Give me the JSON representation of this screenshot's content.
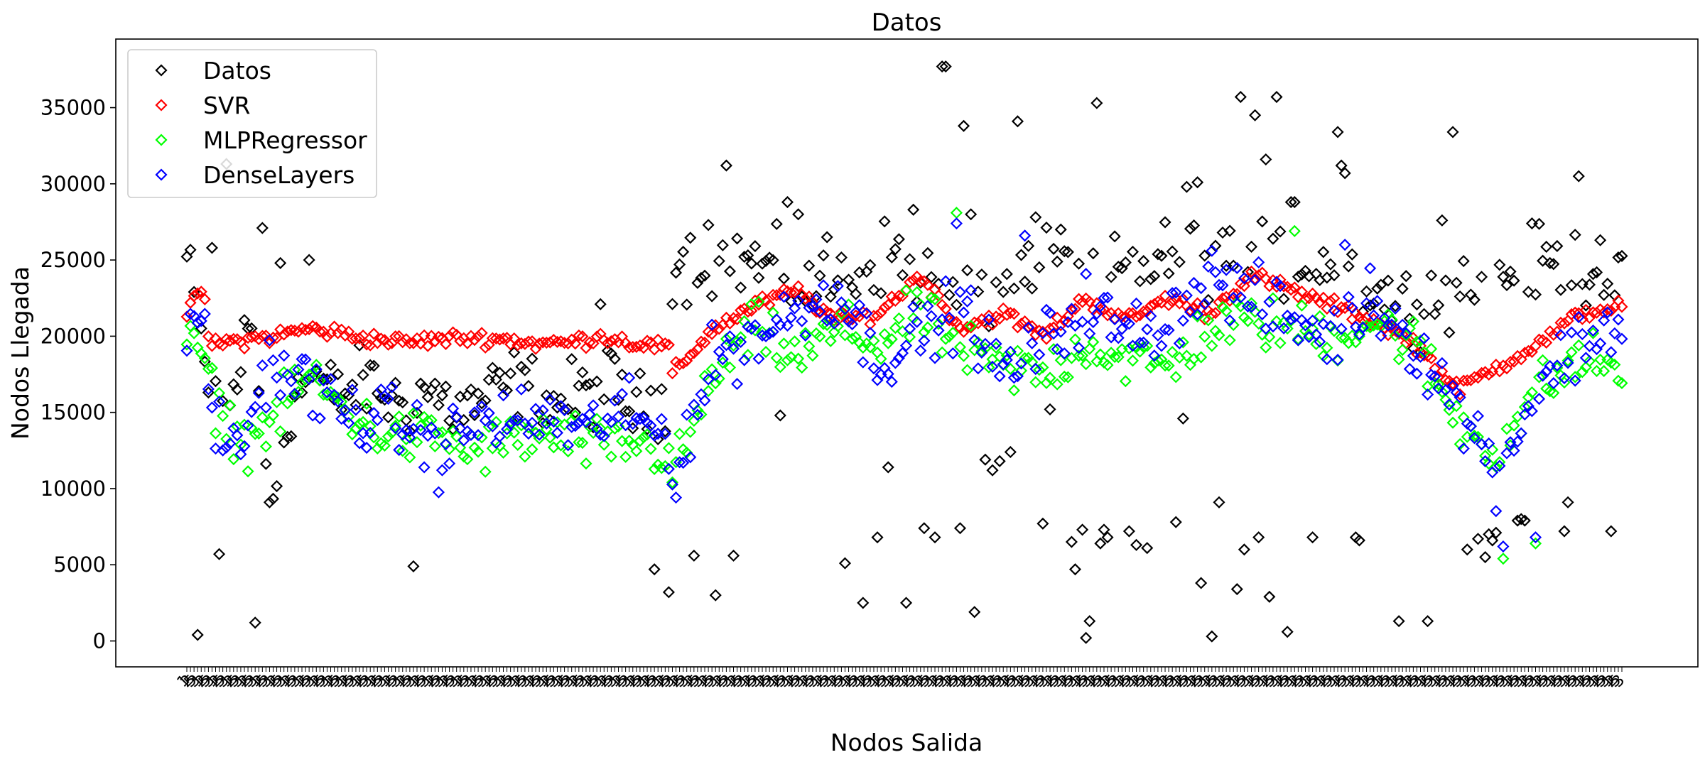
{
  "chart_data": {
    "type": "scatter",
    "title": "Datos",
    "xlabel": "Nodos Salida",
    "ylabel": "Nodos Llegada",
    "ylim": [
      -1700,
      39500
    ],
    "yticks": [
      0,
      5000,
      10000,
      15000,
      20000,
      25000,
      30000,
      35000
    ],
    "ytick_labels": [
      "0",
      "5000",
      "10000",
      "15000",
      "20000",
      "25000",
      "30000",
      "35000"
    ],
    "n_points": 400,
    "marker": "diamond-open",
    "grid": false,
    "legend_position": "top-left",
    "x_ticklabel_repeat": [
      "1",
      "2",
      "5",
      "3"
    ],
    "series": [
      {
        "name": "Datos",
        "color": "#000000",
        "segments": [
          {
            "from": 0,
            "to": 42,
            "anchors": [
              25000,
              17000,
              15000,
              21000,
              9000,
              16000,
              17500,
              16000
            ]
          },
          {
            "from": 42,
            "to": 135,
            "anchors": [
              16000,
              17000,
              15500,
              16500,
              15000,
              16000,
              17000,
              15500,
              16000,
              17000,
              15000,
              16000
            ]
          },
          {
            "from": 135,
            "to": 400,
            "anchors": [
              24800,
              25000,
              23000,
              25500,
              22000,
              25000,
              24000,
              25500,
              24800,
              25000,
              22000,
              23500,
              25000,
              24000
            ]
          }
        ],
        "spread": 3600,
        "outliers": [
          {
            "i": 3,
            "y": 400
          },
          {
            "i": 7,
            "y": 25800
          },
          {
            "i": 9,
            "y": 5700
          },
          {
            "i": 11,
            "y": 31300
          },
          {
            "i": 19,
            "y": 1200
          },
          {
            "i": 21,
            "y": 27100
          },
          {
            "i": 23,
            "y": 9100
          },
          {
            "i": 26,
            "y": 24800
          },
          {
            "i": 34,
            "y": 25000
          },
          {
            "i": 63,
            "y": 4900
          },
          {
            "i": 115,
            "y": 22100
          },
          {
            "i": 130,
            "y": 4700
          },
          {
            "i": 134,
            "y": 3200
          },
          {
            "i": 141,
            "y": 5600
          },
          {
            "i": 145,
            "y": 27300
          },
          {
            "i": 147,
            "y": 3000
          },
          {
            "i": 150,
            "y": 31200
          },
          {
            "i": 152,
            "y": 5600
          },
          {
            "i": 165,
            "y": 14800
          },
          {
            "i": 167,
            "y": 28800
          },
          {
            "i": 170,
            "y": 28000
          },
          {
            "i": 178,
            "y": 26500
          },
          {
            "i": 183,
            "y": 5100
          },
          {
            "i": 188,
            "y": 2500
          },
          {
            "i": 192,
            "y": 6800
          },
          {
            "i": 195,
            "y": 11400
          },
          {
            "i": 200,
            "y": 2500
          },
          {
            "i": 202,
            "y": 28300
          },
          {
            "i": 205,
            "y": 7400
          },
          {
            "i": 208,
            "y": 6800
          },
          {
            "i": 210,
            "y": 37700
          },
          {
            "i": 211,
            "y": 37700
          },
          {
            "i": 215,
            "y": 7400
          },
          {
            "i": 216,
            "y": 33800
          },
          {
            "i": 218,
            "y": 28000
          },
          {
            "i": 219,
            "y": 1900
          },
          {
            "i": 222,
            "y": 11900
          },
          {
            "i": 224,
            "y": 11200
          },
          {
            "i": 226,
            "y": 11800
          },
          {
            "i": 229,
            "y": 12400
          },
          {
            "i": 231,
            "y": 34100
          },
          {
            "i": 238,
            "y": 7700
          },
          {
            "i": 240,
            "y": 15200
          },
          {
            "i": 243,
            "y": 27000
          },
          {
            "i": 246,
            "y": 6500
          },
          {
            "i": 247,
            "y": 4700
          },
          {
            "i": 249,
            "y": 7300
          },
          {
            "i": 250,
            "y": 200
          },
          {
            "i": 251,
            "y": 1300
          },
          {
            "i": 253,
            "y": 35300
          },
          {
            "i": 254,
            "y": 6400
          },
          {
            "i": 255,
            "y": 7300
          },
          {
            "i": 256,
            "y": 6800
          },
          {
            "i": 262,
            "y": 7200
          },
          {
            "i": 264,
            "y": 6300
          },
          {
            "i": 267,
            "y": 6100
          },
          {
            "i": 275,
            "y": 7800
          },
          {
            "i": 277,
            "y": 14600
          },
          {
            "i": 278,
            "y": 29800
          },
          {
            "i": 281,
            "y": 30100
          },
          {
            "i": 282,
            "y": 3800
          },
          {
            "i": 285,
            "y": 300
          },
          {
            "i": 287,
            "y": 9100
          },
          {
            "i": 288,
            "y": 26800
          },
          {
            "i": 292,
            "y": 3400
          },
          {
            "i": 293,
            "y": 35700
          },
          {
            "i": 294,
            "y": 6000
          },
          {
            "i": 297,
            "y": 34500
          },
          {
            "i": 298,
            "y": 6800
          },
          {
            "i": 300,
            "y": 31600
          },
          {
            "i": 301,
            "y": 2900
          },
          {
            "i": 303,
            "y": 35700
          },
          {
            "i": 306,
            "y": 600
          },
          {
            "i": 307,
            "y": 28800
          },
          {
            "i": 308,
            "y": 28800
          },
          {
            "i": 313,
            "y": 6800
          },
          {
            "i": 320,
            "y": 33400
          },
          {
            "i": 321,
            "y": 31200
          },
          {
            "i": 322,
            "y": 30700
          },
          {
            "i": 325,
            "y": 6800
          },
          {
            "i": 326,
            "y": 6600
          },
          {
            "i": 337,
            "y": 1300
          },
          {
            "i": 345,
            "y": 1300
          },
          {
            "i": 349,
            "y": 27600
          },
          {
            "i": 352,
            "y": 33400
          },
          {
            "i": 356,
            "y": 6000
          },
          {
            "i": 359,
            "y": 6700
          },
          {
            "i": 361,
            "y": 5500
          },
          {
            "i": 362,
            "y": 7000
          },
          {
            "i": 363,
            "y": 6600
          },
          {
            "i": 364,
            "y": 7100
          },
          {
            "i": 370,
            "y": 7900
          },
          {
            "i": 371,
            "y": 8000
          },
          {
            "i": 372,
            "y": 7900
          },
          {
            "i": 379,
            "y": 24800
          },
          {
            "i": 383,
            "y": 7200
          },
          {
            "i": 384,
            "y": 9100
          },
          {
            "i": 387,
            "y": 30500
          },
          {
            "i": 393,
            "y": 26300
          },
          {
            "i": 396,
            "y": 7200
          }
        ]
      },
      {
        "name": "SVR",
        "color": "#ff0000",
        "segments": [
          {
            "from": 0,
            "to": 6,
            "anchors": [
              20800,
              23200,
              22500
            ]
          },
          {
            "from": 6,
            "to": 135,
            "anchors": [
              19500,
              19700,
              20000,
              20500,
              20200,
              19800,
              19600,
              19800,
              19900,
              19800,
              19500,
              19600,
              20000,
              19500,
              19300
            ]
          },
          {
            "from": 135,
            "to": 400,
            "anchors": [
              17500,
              20500,
              22000,
              23000,
              21000,
              21500,
              24000,
              20500,
              21500,
              20000,
              22500,
              21000,
              22500,
              21500,
              24000,
              23000,
              22000,
              21000,
              19500,
              16500,
              18000,
              19500,
              21500,
              22000
            ]
          }
        ],
        "spread": 700,
        "outliers": []
      },
      {
        "name": "MLPRegressor",
        "color": "#00ff00",
        "segments": [
          {
            "from": 0,
            "to": 6,
            "anchors": [
              19600,
              18800,
              18800
            ]
          },
          {
            "from": 6,
            "to": 135,
            "anchors": [
              16500,
              13000,
              14500,
              17500,
              15500,
              13800,
              13300,
              13500,
              12500,
              13000,
              13500,
              13200,
              12700,
              13000,
              12200
            ]
          },
          {
            "from": 135,
            "to": 400,
            "anchors": [
              10500,
              17500,
              20500,
              18500,
              20500,
              19500,
              21500,
              19000,
              18000,
              17500,
              19500,
              18500,
              18000,
              20500,
              21000,
              20500,
              20000,
              21000,
              19500,
              14500,
              12500,
              16500,
              18500,
              18000
            ]
          }
        ],
        "spread": 2600,
        "outliers": [
          {
            "i": 214,
            "y": 28100
          },
          {
            "i": 308,
            "y": 26900
          },
          {
            "i": 366,
            "y": 5400
          },
          {
            "i": 375,
            "y": 6400
          }
        ]
      },
      {
        "name": "DenseLayers",
        "color": "#0000ff",
        "segments": [
          {
            "from": 0,
            "to": 6,
            "anchors": [
              18900,
              20300,
              22000
            ]
          },
          {
            "from": 6,
            "to": 135,
            "anchors": [
              15500,
              12000,
              18000,
              17500,
              16000,
              14800,
              14500,
              14000,
              12300,
              14000,
              14500,
              14300,
              14800,
              13500,
              15000,
              14300,
              13500
            ]
          },
          {
            "from": 135,
            "to": 400,
            "anchors": [
              10500,
              18500,
              20000,
              21500,
              23000,
              18500,
              20000,
              22000,
              17500,
              19500,
              22000,
              20000,
              21000,
              24000,
              22500,
              21000,
              20000,
              22500,
              19500,
              15500,
              11000,
              17000,
              19500,
              21000
            ]
          }
        ],
        "spread": 3200,
        "outliers": [
          {
            "i": 214,
            "y": 27400
          },
          {
            "i": 233,
            "y": 26600
          },
          {
            "i": 322,
            "y": 26000
          },
          {
            "i": 366,
            "y": 6200
          },
          {
            "i": 375,
            "y": 6800
          }
        ]
      }
    ]
  }
}
